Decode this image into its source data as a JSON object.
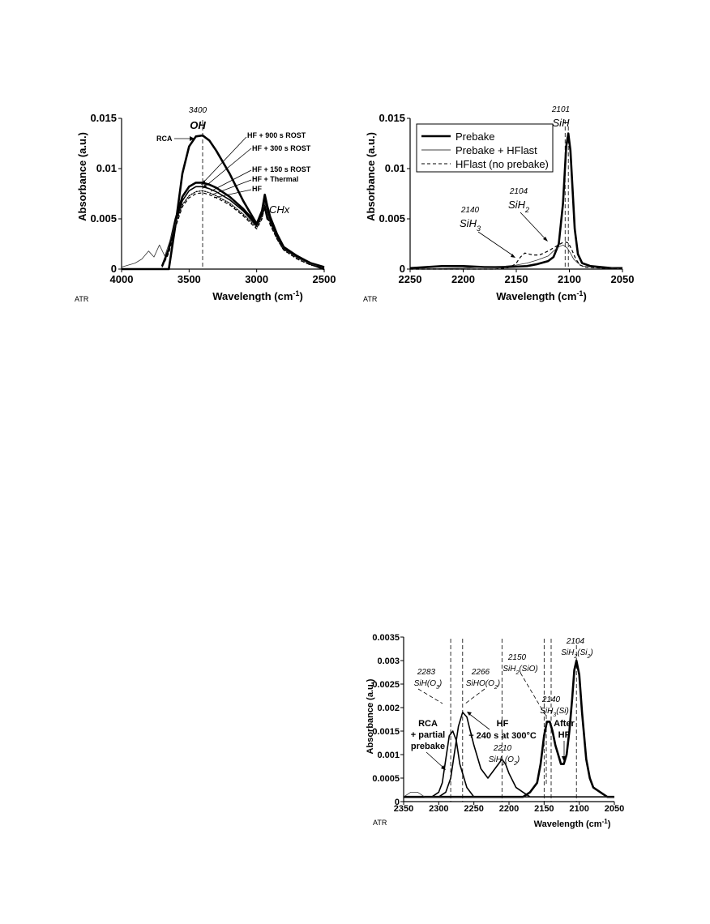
{
  "chart_data": [
    {
      "type": "line",
      "ylabel": "Absorbance (a.u.)",
      "xlabel": "Wavelength (cm-1)",
      "xlabel_main": "Wavelength (cm",
      "xlabel_sup": "-1",
      "xlabel_close": ")",
      "xlim": [
        4000,
        2500
      ],
      "ylim": [
        0,
        0.015
      ],
      "x_ticks": [
        4000,
        3500,
        3000,
        2500
      ],
      "y_ticks": [
        0,
        0.005,
        0.01,
        0.015
      ],
      "y_tick_labels": [
        "0",
        "0.005",
        "0.01",
        "0.015"
      ],
      "corner_label": "ATR",
      "annotations": {
        "peak_pos": "3400",
        "peak_name": "OH",
        "chx": "CHx",
        "rca": "RCA",
        "hf900": "HF + 900 s ROST",
        "hf300": "HF + 300 s ROST",
        "hf150": "HF + 150 s ROST",
        "hfthermal": "HF + Thermal",
        "hf": "HF"
      },
      "markers": [
        3400
      ],
      "series": [
        {
          "style": "thick",
          "x": [
            4000,
            3700,
            3650,
            3600,
            3550,
            3500,
            3450,
            3400,
            3350,
            3300,
            3200,
            3100,
            3000,
            2960,
            2940,
            2920,
            2900,
            2850,
            2800,
            2700,
            2600,
            2500
          ],
          "y": [
            0,
            0,
            0,
            0.0045,
            0.0095,
            0.0122,
            0.0132,
            0.0133,
            0.0128,
            0.0118,
            0.0095,
            0.0068,
            0.0045,
            0.0055,
            0.0062,
            0.005,
            0.0048,
            0.0032,
            0.002,
            0.0013,
            0.0005,
            0
          ]
        },
        {
          "style": "thick",
          "x": [
            3700,
            3650,
            3600,
            3550,
            3500,
            3450,
            3400,
            3350,
            3300,
            3200,
            3100,
            3000,
            2960,
            2940,
            2920,
            2900,
            2850,
            2800,
            2700,
            2600,
            2500
          ],
          "y": [
            0.0003,
            0.002,
            0.005,
            0.0072,
            0.0082,
            0.0086,
            0.0086,
            0.0084,
            0.0081,
            0.0072,
            0.006,
            0.0045,
            0.0058,
            0.0074,
            0.0062,
            0.0052,
            0.0035,
            0.0022,
            0.0013,
            0.0006,
            0.0002
          ]
        },
        {
          "style": "medium",
          "x": [
            3700,
            3650,
            3600,
            3550,
            3500,
            3450,
            3400,
            3350,
            3300,
            3200,
            3100,
            3000,
            2960,
            2940,
            2920,
            2900,
            2850,
            2800,
            2700,
            2600,
            2500
          ],
          "y": [
            0.0003,
            0.0019,
            0.0047,
            0.0068,
            0.0078,
            0.0082,
            0.0082,
            0.008,
            0.0077,
            0.0069,
            0.0058,
            0.0043,
            0.0055,
            0.007,
            0.0058,
            0.0049,
            0.0033,
            0.0021,
            0.0012,
            0.0005,
            0.0002
          ]
        },
        {
          "style": "thin",
          "x": [
            4000,
            3900,
            3850,
            3800,
            3760,
            3720,
            3680,
            3650,
            3600,
            3550,
            3500,
            3450,
            3400,
            3350,
            3300,
            3200,
            3100,
            3000,
            2960,
            2940,
            2920,
            2900,
            2850,
            2800,
            2700,
            2600,
            2500
          ],
          "y": [
            0.0002,
            0.0006,
            0.001,
            0.0018,
            0.0012,
            0.0024,
            0.0013,
            0.0025,
            0.0046,
            0.0064,
            0.0073,
            0.0077,
            0.0078,
            0.0076,
            0.0073,
            0.0066,
            0.0055,
            0.0042,
            0.0052,
            0.0066,
            0.0055,
            0.0046,
            0.0031,
            0.002,
            0.0011,
            0.0005,
            0.0001
          ]
        },
        {
          "style": "dashed",
          "x": [
            3700,
            3650,
            3600,
            3550,
            3500,
            3450,
            3400,
            3350,
            3300,
            3200,
            3100,
            3000,
            2960,
            2940,
            2920,
            2900,
            2850,
            2800,
            2700,
            2600,
            2500
          ],
          "y": [
            0.0002,
            0.0016,
            0.0042,
            0.0062,
            0.0071,
            0.0075,
            0.0076,
            0.0074,
            0.0071,
            0.0064,
            0.0053,
            0.004,
            0.005,
            0.0063,
            0.0052,
            0.0044,
            0.003,
            0.0019,
            0.001,
            0.0004,
            0.0001
          ]
        },
        {
          "style": "dotted",
          "x": [
            3700,
            3650,
            3600,
            3550,
            3500,
            3450,
            3400,
            3350,
            3300,
            3200,
            3100,
            3000,
            2960,
            2940,
            2920,
            2900,
            2850,
            2800,
            2700,
            2600,
            2500
          ],
          "y": [
            0.0002,
            0.0017,
            0.0044,
            0.0064,
            0.0073,
            0.0077,
            0.0078,
            0.0076,
            0.0073,
            0.0065,
            0.0054,
            0.0041,
            0.0051,
            0.0064,
            0.0053,
            0.0045,
            0.003,
            0.0019,
            0.001,
            0.0004,
            0.0001
          ]
        }
      ]
    },
    {
      "type": "line",
      "ylabel": "Absorbance (a.u.)",
      "xlabel": "Wavelength (cm-1)",
      "xlabel_main": "Wavelength (cm",
      "xlabel_sup": "-1",
      "xlabel_close": ")",
      "xlim": [
        2250,
        2050
      ],
      "ylim": [
        0,
        0.015
      ],
      "x_ticks": [
        2250,
        2200,
        2150,
        2100,
        2050
      ],
      "y_ticks": [
        0,
        0.005,
        0.01,
        0.015
      ],
      "y_tick_labels": [
        "0",
        "0.005",
        "0.01",
        "0.015"
      ],
      "corner_label": "ATR",
      "legend_position": "top-left",
      "annotations": {
        "sih_pos": "2101",
        "sih": "SiH",
        "sih2_pos": "2104",
        "sih2_main": "SiH",
        "sih2_sub": "2",
        "sih3_pos": "2140",
        "sih3_main": "SiH",
        "sih3_sub": "3"
      },
      "markers": [
        2101,
        2104
      ],
      "series": [
        {
          "name": "Prebake",
          "style": "thick",
          "x": [
            2250,
            2220,
            2200,
            2180,
            2160,
            2140,
            2130,
            2120,
            2115,
            2110,
            2106,
            2103,
            2101,
            2099,
            2097,
            2095,
            2092,
            2088,
            2080,
            2070,
            2060,
            2050
          ],
          "y": [
            0.0001,
            0.0003,
            0.0003,
            0.0002,
            0.0002,
            0.0003,
            0.0005,
            0.0008,
            0.0012,
            0.0025,
            0.0065,
            0.0122,
            0.0135,
            0.0118,
            0.008,
            0.004,
            0.0015,
            0.0006,
            0.0003,
            0.0002,
            0.0001,
            0.0001
          ]
        },
        {
          "name": "Prebake + HFlast",
          "style": "thin",
          "x": [
            2250,
            2200,
            2180,
            2160,
            2150,
            2140,
            2130,
            2120,
            2115,
            2110,
            2106,
            2102,
            2099,
            2096,
            2092,
            2088,
            2080,
            2070,
            2060,
            2050
          ],
          "y": [
            0,
            0.0001,
            0.0002,
            0.0003,
            0.0004,
            0.0006,
            0.0009,
            0.0013,
            0.0018,
            0.0022,
            0.0024,
            0.0021,
            0.0016,
            0.001,
            0.0006,
            0.0003,
            0.0002,
            0.0001,
            0.0001,
            0
          ]
        },
        {
          "name": "HFlast (no prebake)",
          "style": "dashed",
          "x": [
            2250,
            2200,
            2170,
            2160,
            2155,
            2150,
            2146,
            2142,
            2138,
            2134,
            2128,
            2120,
            2112,
            2107,
            2104,
            2101,
            2098,
            2094,
            2090,
            2085,
            2070,
            2050
          ],
          "y": [
            0,
            0,
            0,
            0.0001,
            0.0002,
            0.0006,
            0.0012,
            0.0016,
            0.0015,
            0.0014,
            0.0014,
            0.0018,
            0.0023,
            0.0026,
            0.0027,
            0.0026,
            0.002,
            0.001,
            0.0004,
            0.0002,
            0.0001,
            0
          ]
        }
      ]
    },
    {
      "type": "line",
      "ylabel": "Absorbance (a.u.)",
      "xlabel": "Wavelength (cm-1)",
      "xlabel_main": "Wavelength (cm",
      "xlabel_sup": "-1",
      "xlabel_close": ")",
      "xlim": [
        2350,
        2050
      ],
      "ylim": [
        0,
        0.0035
      ],
      "x_ticks": [
        2350,
        2300,
        2250,
        2200,
        2150,
        2100,
        2050
      ],
      "y_ticks": [
        0,
        0.0005,
        0.001,
        0.0015,
        0.002,
        0.0025,
        0.003,
        0.0035
      ],
      "y_tick_labels": [
        "0",
        "0.0005",
        "0.001",
        "0.0015",
        "0.002",
        "0.0025",
        "0.003",
        "0.0035"
      ],
      "corner_label": "ATR",
      "annotations": {
        "p2283_pos": "2283",
        "p2283_main": "SiH(O",
        "p2283_sub": "3",
        "p2283_close": ")",
        "p2266_pos": "2266",
        "p2266_main": "SiHO(O",
        "p2266_sub": "2",
        "p2266_close": ")",
        "p2150_pos": "2150",
        "p2150_main": "SiH",
        "p2150_sub": "2",
        "p2150_rest": "(SiO)",
        "p2104_pos": "2104",
        "p2104_main": "SiH",
        "p2104_sub": "2",
        "p2104_rest": "(Si",
        "p2104_sub2": "2",
        "p2104_close": ")",
        "p2140_pos": "2140",
        "p2140_main": "SiH",
        "p2140_sub": "3",
        "p2140_rest": "(Si)",
        "p2210_pos": "2210",
        "p2210_main": "SiH",
        "p2210_sub": "2",
        "p2210_rest": "(O",
        "p2210_sub2": "2",
        "p2210_close": ")",
        "rca_l1": "RCA",
        "rca_l2": "+ partial",
        "rca_l3": "prebake",
        "hf_l1": "HF",
        "hf_l2": "+ 240 s at 300°C",
        "after_l1": "After",
        "after_l2": "HF"
      },
      "markers": [
        2283,
        2266,
        2210,
        2150,
        2140,
        2104
      ],
      "series": [
        {
          "style": "medium",
          "x": [
            2350,
            2330,
            2310,
            2300,
            2295,
            2290,
            2285,
            2280,
            2275,
            2270,
            2260,
            2250,
            2240,
            2230,
            2220,
            2215,
            2210,
            2205,
            2200,
            2190,
            2180,
            2170,
            2160,
            2150,
            2140,
            2130,
            2120,
            2110,
            2100,
            2080,
            2060,
            2050
          ],
          "y": [
            0.0001,
            0.0001,
            0.0001,
            0.0002,
            0.0004,
            0.0009,
            0.0014,
            0.0015,
            0.0013,
            0.0008,
            0.0003,
            0.0001,
            0.0001,
            0.0001,
            0.0001,
            0.0001,
            0.0001,
            0.0001,
            0.0001,
            0.0001,
            0.0001,
            0.0001,
            0.0001,
            0.0001,
            0.0001,
            0.0001,
            0.0001,
            0.0001,
            0.0001,
            0.0001,
            0.0001,
            0.0001
          ]
        },
        {
          "style": "medium",
          "x": [
            2350,
            2330,
            2310,
            2300,
            2290,
            2283,
            2278,
            2272,
            2266,
            2260,
            2255,
            2250,
            2240,
            2230,
            2220,
            2215,
            2210,
            2205,
            2200,
            2190,
            2180,
            2170,
            2160,
            2150,
            2140,
            2130,
            2120,
            2110,
            2100,
            2080,
            2060,
            2050
          ],
          "y": [
            0.0001,
            0.0001,
            0.0001,
            0.0001,
            0.0002,
            0.0005,
            0.001,
            0.0016,
            0.0019,
            0.0018,
            0.0015,
            0.0012,
            0.0007,
            0.0005,
            0.0007,
            0.0008,
            0.0009,
            0.0008,
            0.0006,
            0.0003,
            0.0002,
            0.0001,
            0.0001,
            0.0001,
            0.0001,
            0.0001,
            0.0001,
            0.0001,
            0.0001,
            0.0001,
            0.0001,
            0.0001
          ]
        },
        {
          "style": "thick",
          "x": [
            2350,
            2320,
            2300,
            2280,
            2260,
            2240,
            2220,
            2200,
            2180,
            2170,
            2160,
            2155,
            2150,
            2146,
            2142,
            2138,
            2134,
            2130,
            2126,
            2122,
            2118,
            2114,
            2110,
            2107,
            2104,
            2100,
            2096,
            2090,
            2085,
            2080,
            2070,
            2060,
            2050
          ],
          "y": [
            0.0001,
            0.0001,
            0.0001,
            0.0001,
            0.0001,
            0.0001,
            0.0001,
            0.0001,
            0.0001,
            0.0002,
            0.0004,
            0.0008,
            0.0014,
            0.0017,
            0.0017,
            0.0015,
            0.0012,
            0.001,
            0.0008,
            0.0008,
            0.001,
            0.0015,
            0.0022,
            0.0028,
            0.003,
            0.0027,
            0.0019,
            0.0009,
            0.0005,
            0.0003,
            0.0002,
            0.0001,
            0.0001
          ]
        },
        {
          "style": "thin",
          "x": [
            2350,
            2340,
            2330,
            2320,
            2310,
            2300,
            2290,
            2280,
            2270,
            2260,
            2250,
            2240,
            2230,
            2220,
            2210,
            2200,
            2190,
            2180,
            2170,
            2160,
            2150,
            2140,
            2130,
            2120,
            2110,
            2100,
            2090,
            2080,
            2070,
            2060,
            2050
          ],
          "y": [
            0.0001,
            0.0002,
            0.0002,
            0.0001,
            0.0001,
            0.0001,
            0.0001,
            0.0001,
            0.0001,
            0.0001,
            0.0001,
            0.0001,
            0.0001,
            0.0001,
            0.0001,
            0.0001,
            0.0001,
            0.0001,
            0.0001,
            0.0001,
            0.0001,
            0.0001,
            0.0001,
            0.0001,
            0.0001,
            0.0001,
            0.0001,
            0.0001,
            0.0001,
            0.0001,
            0.0001
          ]
        }
      ]
    }
  ],
  "colors": {
    "line": "#000000",
    "thin": "#444444",
    "background": "#ffffff"
  }
}
